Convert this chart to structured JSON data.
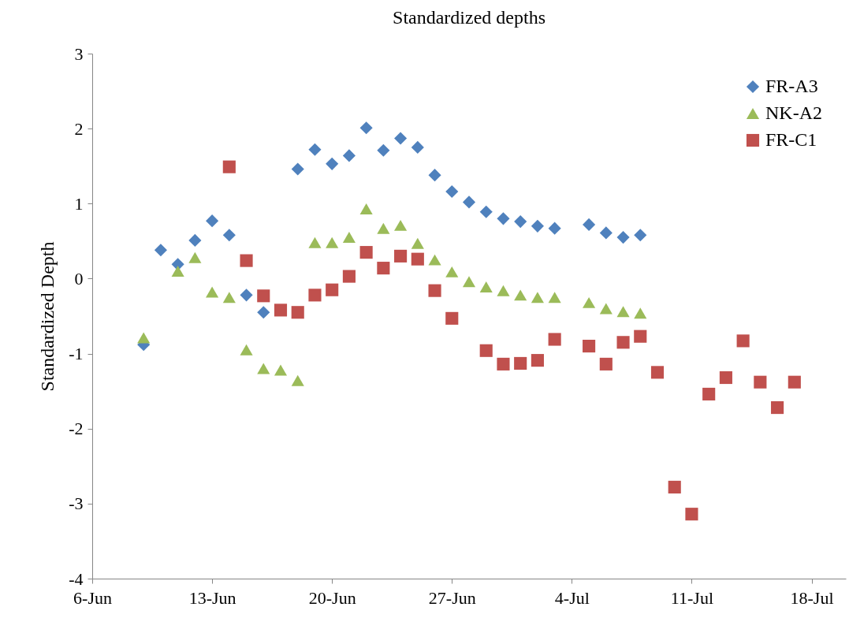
{
  "chart_data": {
    "type": "scatter",
    "title": "Standardized depths",
    "ylabel": "Standardized Depth",
    "xlim": [
      "--06-06",
      "--07-20"
    ],
    "xticks": [
      {
        "value": "--06-06",
        "label": "6-Jun"
      },
      {
        "value": "--06-13",
        "label": "13-Jun"
      },
      {
        "value": "--06-20",
        "label": "20-Jun"
      },
      {
        "value": "--06-27",
        "label": "27-Jun"
      },
      {
        "value": "--07-04",
        "label": "4-Jul"
      },
      {
        "value": "--07-11",
        "label": "11-Jul"
      },
      {
        "value": "--07-18",
        "label": "18-Jul"
      }
    ],
    "ylim": [
      -4,
      3
    ],
    "yticks": [
      -4,
      -3,
      -2,
      -1,
      0,
      1,
      2,
      3
    ],
    "grid": false,
    "legend": "top right",
    "series": [
      {
        "name": "FR-A3",
        "color": "#4f81bd",
        "marker": "diamond",
        "x": [
          "--06-09",
          "--06-10",
          "--06-11",
          "--06-12",
          "--06-13",
          "--06-14",
          "--06-15",
          "--06-16",
          "--06-18",
          "--06-19",
          "--06-20",
          "--06-21",
          "--06-22",
          "--06-23",
          "--06-24",
          "--06-25",
          "--06-26",
          "--06-27",
          "--06-28",
          "--06-29",
          "--06-30",
          "--07-01",
          "--07-02",
          "--07-03",
          "--07-05",
          "--07-06",
          "--07-07",
          "--07-08"
        ],
        "values": [
          -0.88,
          0.38,
          0.19,
          0.51,
          0.77,
          0.58,
          -0.22,
          -0.45,
          1.46,
          1.72,
          1.53,
          1.64,
          2.01,
          1.71,
          1.87,
          1.75,
          1.38,
          1.16,
          1.02,
          0.89,
          0.8,
          0.76,
          0.7,
          0.67,
          0.72,
          0.61,
          0.55,
          0.58
        ]
      },
      {
        "name": "NK-A2",
        "color": "#9bbb59",
        "marker": "triangle",
        "x": [
          "--06-09",
          "--06-11",
          "--06-12",
          "--06-13",
          "--06-14",
          "--06-15",
          "--06-16",
          "--06-17",
          "--06-18",
          "--06-19",
          "--06-20",
          "--06-21",
          "--06-22",
          "--06-23",
          "--06-24",
          "--06-25",
          "--06-26",
          "--06-27",
          "--06-28",
          "--06-29",
          "--06-30",
          "--07-01",
          "--07-02",
          "--07-03",
          "--07-05",
          "--07-06",
          "--07-07",
          "--07-08"
        ],
        "values": [
          -0.79,
          0.1,
          0.28,
          -0.18,
          -0.25,
          -0.95,
          -1.2,
          -1.22,
          -1.36,
          0.48,
          0.48,
          0.55,
          0.93,
          0.67,
          0.71,
          0.47,
          0.25,
          0.09,
          -0.04,
          -0.11,
          -0.16,
          -0.22,
          -0.25,
          -0.25,
          -0.32,
          -0.4,
          -0.44,
          -0.46
        ]
      },
      {
        "name": "FR-C1",
        "color": "#c0504d",
        "marker": "square",
        "x": [
          "--06-14",
          "--06-15",
          "--06-16",
          "--06-17",
          "--06-18",
          "--06-19",
          "--06-20",
          "--06-21",
          "--06-22",
          "--06-23",
          "--06-24",
          "--06-25",
          "--06-26",
          "--06-27",
          "--06-29",
          "--06-30",
          "--07-01",
          "--07-02",
          "--07-03",
          "--07-05",
          "--07-06",
          "--07-07",
          "--07-08",
          "--07-09",
          "--07-10",
          "--07-11",
          "--07-12",
          "--07-13",
          "--07-14",
          "--07-15",
          "--07-16",
          "--07-17"
        ],
        "values": [
          1.49,
          0.24,
          -0.23,
          -0.42,
          -0.45,
          -0.22,
          -0.15,
          0.03,
          0.35,
          0.14,
          0.3,
          0.26,
          -0.16,
          -0.53,
          -0.96,
          -1.14,
          -1.13,
          -1.09,
          -0.81,
          -0.9,
          -1.14,
          -0.85,
          -0.77,
          -1.25,
          -2.78,
          -3.14,
          -1.54,
          -1.32,
          -0.83,
          -1.38,
          -1.72,
          -1.38
        ]
      }
    ]
  }
}
